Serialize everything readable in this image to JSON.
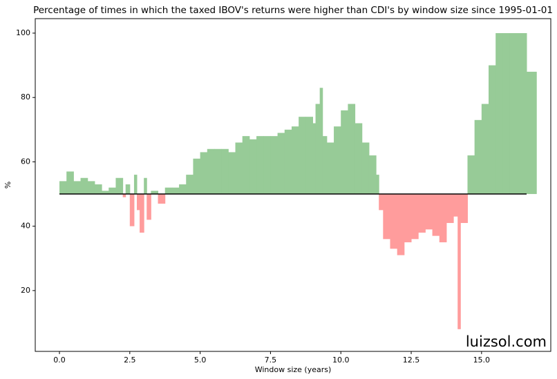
{
  "chart_data": {
    "type": "baseline-area",
    "title": "Percentage of times in which the taxed IBOV's returns were higher than CDI's by window size since 1995-01-01",
    "x_label": "Window size (years)",
    "y_label": "%",
    "watermark": "luizsol.com",
    "x": [
      0,
      0.25,
      0.5,
      0.75,
      1.0,
      1.25,
      1.5,
      1.75,
      2.0,
      2.25,
      2.35,
      2.5,
      2.65,
      2.75,
      2.85,
      3.0,
      3.1,
      3.25,
      3.5,
      3.75,
      4.0,
      4.25,
      4.5,
      4.75,
      5.0,
      5.25,
      5.5,
      5.75,
      6.0,
      6.25,
      6.5,
      6.75,
      7.0,
      7.25,
      7.5,
      7.75,
      8.0,
      8.25,
      8.5,
      8.75,
      9.0,
      9.1,
      9.25,
      9.35,
      9.5,
      9.75,
      10.0,
      10.25,
      10.5,
      10.75,
      11.0,
      11.25,
      11.35,
      11.5,
      11.75,
      12.0,
      12.25,
      12.5,
      12.75,
      13.0,
      13.25,
      13.5,
      13.75,
      14.0,
      14.15,
      14.25,
      14.5,
      14.75,
      15.0,
      15.25,
      15.5,
      15.75,
      16.0,
      16.25,
      16.6
    ],
    "values": [
      54,
      57,
      54,
      55,
      54,
      53,
      51,
      52,
      55,
      49,
      53,
      40,
      56,
      45,
      38,
      55,
      42,
      51,
      47,
      52,
      52,
      53,
      56,
      61,
      63,
      64,
      64,
      64,
      63,
      66,
      68,
      67,
      68,
      68,
      68,
      69,
      70,
      71,
      74,
      74,
      72,
      78,
      83,
      68,
      66,
      71,
      76,
      78,
      72,
      66,
      62,
      56,
      45,
      36,
      33,
      31,
      35,
      36,
      38,
      39,
      37,
      35,
      41,
      43,
      8,
      41,
      62,
      73,
      78,
      90,
      100,
      100,
      100,
      100,
      88
    ],
    "baseline": 50,
    "above_color": "#97cb97",
    "below_color": "#ff9c9c",
    "baseline_color": "#000000",
    "xlim": [
      -0.86,
      17.46
    ],
    "ylim": [
      1.1,
      104.5
    ],
    "xticks": [
      {
        "value": 0,
        "label": "0.0"
      },
      2.5,
      {
        "value": 5,
        "label": "5.0"
      },
      7.5,
      {
        "value": 10,
        "label": "10.0"
      },
      12.5,
      {
        "value": 15,
        "label": "15.0"
      }
    ],
    "yticks": [
      20,
      40,
      60,
      80,
      100
    ]
  }
}
